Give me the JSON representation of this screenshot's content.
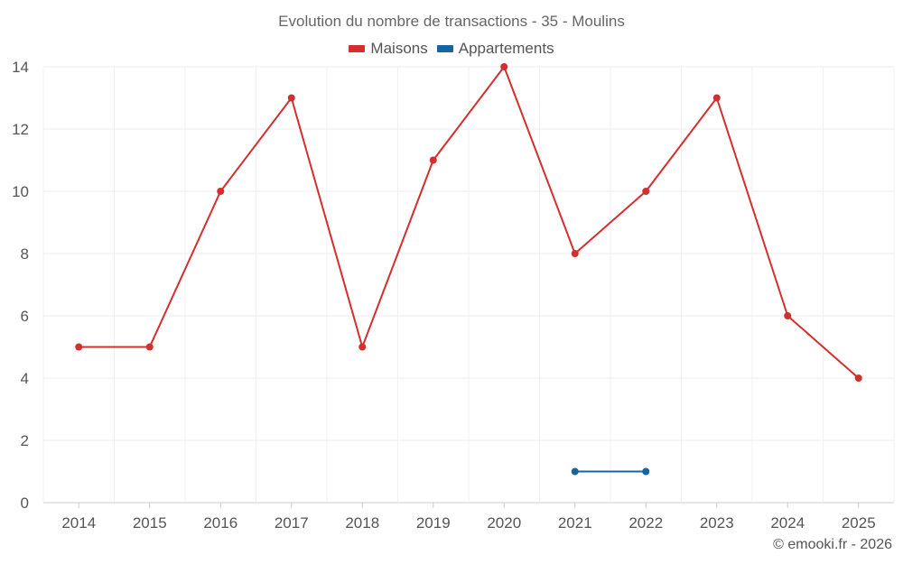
{
  "chart_data": {
    "type": "line",
    "title": "Evolution du nombre de transactions - 35 - Moulins",
    "categories": [
      "2014",
      "2015",
      "2016",
      "2017",
      "2018",
      "2019",
      "2020",
      "2021",
      "2022",
      "2023",
      "2024",
      "2025"
    ],
    "series": [
      {
        "name": "Maisons",
        "color": "#d32f2f",
        "values": [
          5,
          5,
          10,
          13,
          5,
          11,
          14,
          8,
          10,
          13,
          6,
          4
        ]
      },
      {
        "name": "Appartements",
        "color": "#1565a0",
        "values": [
          null,
          null,
          null,
          null,
          null,
          null,
          null,
          1,
          1,
          null,
          null,
          null
        ]
      }
    ],
    "yticks": [
      0,
      2,
      4,
      6,
      8,
      10,
      12,
      14
    ],
    "ylim": [
      0,
      14
    ],
    "xlabel": "",
    "ylabel": "",
    "grid": true,
    "legend_position": "top-center"
  },
  "credit": "© emooki.fr - 2026"
}
